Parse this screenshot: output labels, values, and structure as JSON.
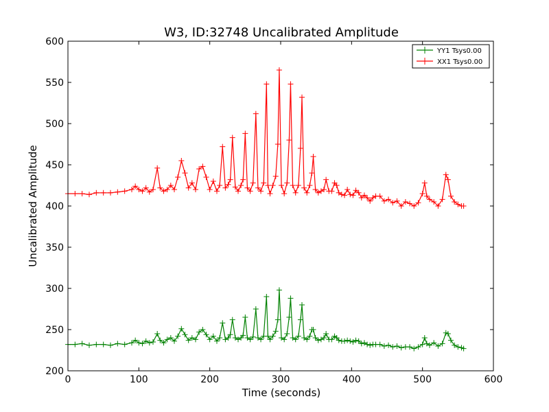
{
  "chart_data": {
    "type": "line",
    "title": "W3, ID:32748 Uncalibrated Amplitude",
    "xlabel": "Time (seconds)",
    "ylabel": "Uncalibrated Amplitude",
    "xlim": [
      0,
      600
    ],
    "ylim": [
      200,
      600
    ],
    "xticks": [
      "0",
      "100",
      "200",
      "300",
      "400",
      "500",
      "600"
    ],
    "yticks": [
      "200",
      "250",
      "300",
      "350",
      "400",
      "450",
      "500",
      "550",
      "600"
    ],
    "grid": false,
    "legend_position": "top-right",
    "series": [
      {
        "name": "YY1 Tsys0.00",
        "color": "#008000",
        "marker": "plus",
        "x": [
          0,
          10,
          20,
          30,
          40,
          50,
          60,
          70,
          80,
          90,
          95,
          100,
          105,
          110,
          115,
          120,
          126,
          130,
          135,
          140,
          145,
          150,
          155,
          160,
          165,
          170,
          175,
          180,
          185,
          190,
          195,
          200,
          205,
          210,
          214,
          218,
          222,
          226,
          229,
          232,
          236,
          240,
          244,
          247,
          250,
          253,
          257,
          261,
          265,
          268,
          272,
          276,
          280,
          282,
          285,
          289,
          293,
          296,
          298,
          301,
          305,
          309,
          312,
          314,
          317,
          321,
          325,
          328,
          330,
          333,
          337,
          341,
          344,
          346,
          349,
          353,
          357,
          361,
          364,
          368,
          372,
          376,
          379,
          382,
          386,
          390,
          394,
          398,
          402,
          406,
          410,
          414,
          418,
          422,
          426,
          430,
          434,
          440,
          446,
          452,
          458,
          464,
          470,
          476,
          482,
          488,
          494,
          500,
          503,
          506,
          510,
          516,
          522,
          528,
          533,
          536,
          540,
          545,
          550,
          555,
          558
        ],
        "values": [
          232,
          232,
          233,
          231,
          232,
          232,
          231,
          233,
          232,
          234,
          237,
          234,
          233,
          236,
          234,
          235,
          245,
          237,
          234,
          238,
          240,
          236,
          242,
          251,
          244,
          237,
          240,
          238,
          247,
          250,
          244,
          238,
          242,
          236,
          240,
          258,
          238,
          240,
          244,
          262,
          240,
          238,
          240,
          243,
          265,
          240,
          238,
          241,
          275,
          240,
          238,
          242,
          290,
          242,
          238,
          242,
          248,
          262,
          298,
          240,
          238,
          245,
          265,
          288,
          240,
          238,
          242,
          262,
          280,
          240,
          238,
          242,
          250,
          250,
          240,
          237,
          238,
          240,
          245,
          238,
          238,
          242,
          240,
          237,
          236,
          236,
          237,
          236,
          235,
          237,
          236,
          233,
          234,
          232,
          231,
          232,
          232,
          232,
          230,
          231,
          229,
          230,
          228,
          229,
          229,
          227,
          229,
          232,
          240,
          233,
          231,
          234,
          230,
          233,
          246,
          245,
          237,
          231,
          229,
          228,
          227
        ]
      },
      {
        "name": "XX1 Tsys0.00",
        "color": "#ff0000",
        "marker": "plus",
        "x": [
          0,
          10,
          20,
          30,
          40,
          50,
          60,
          70,
          80,
          90,
          95,
          100,
          105,
          110,
          115,
          120,
          126,
          130,
          135,
          140,
          145,
          150,
          155,
          160,
          165,
          170,
          175,
          180,
          185,
          190,
          195,
          200,
          205,
          210,
          214,
          218,
          222,
          226,
          229,
          232,
          236,
          240,
          244,
          247,
          250,
          253,
          257,
          261,
          265,
          268,
          272,
          276,
          280,
          282,
          285,
          289,
          293,
          296,
          298,
          301,
          305,
          309,
          312,
          314,
          317,
          321,
          325,
          328,
          330,
          333,
          337,
          341,
          344,
          346,
          349,
          353,
          357,
          361,
          364,
          368,
          372,
          376,
          379,
          382,
          386,
          390,
          394,
          398,
          402,
          406,
          410,
          414,
          418,
          422,
          426,
          430,
          434,
          440,
          446,
          452,
          458,
          464,
          470,
          476,
          482,
          488,
          494,
          500,
          503,
          506,
          510,
          516,
          522,
          528,
          533,
          536,
          540,
          545,
          550,
          555,
          558
        ],
        "values": [
          415,
          415,
          415,
          414,
          416,
          416,
          416,
          417,
          418,
          420,
          424,
          420,
          418,
          422,
          417,
          420,
          446,
          422,
          418,
          420,
          425,
          420,
          435,
          455,
          440,
          422,
          428,
          420,
          445,
          448,
          435,
          420,
          430,
          418,
          425,
          472,
          422,
          426,
          432,
          483,
          423,
          418,
          425,
          432,
          488,
          422,
          418,
          428,
          512,
          422,
          418,
          428,
          548,
          425,
          415,
          425,
          436,
          475,
          565,
          425,
          415,
          428,
          480,
          548,
          425,
          416,
          425,
          470,
          532,
          422,
          416,
          425,
          440,
          460,
          420,
          416,
          418,
          420,
          432,
          418,
          418,
          428,
          425,
          416,
          414,
          413,
          420,
          414,
          413,
          419,
          416,
          410,
          413,
          410,
          406,
          410,
          412,
          412,
          406,
          408,
          404,
          406,
          400,
          405,
          403,
          400,
          404,
          415,
          428,
          412,
          408,
          405,
          400,
          408,
          438,
          432,
          412,
          405,
          402,
          400,
          400
        ]
      }
    ]
  }
}
